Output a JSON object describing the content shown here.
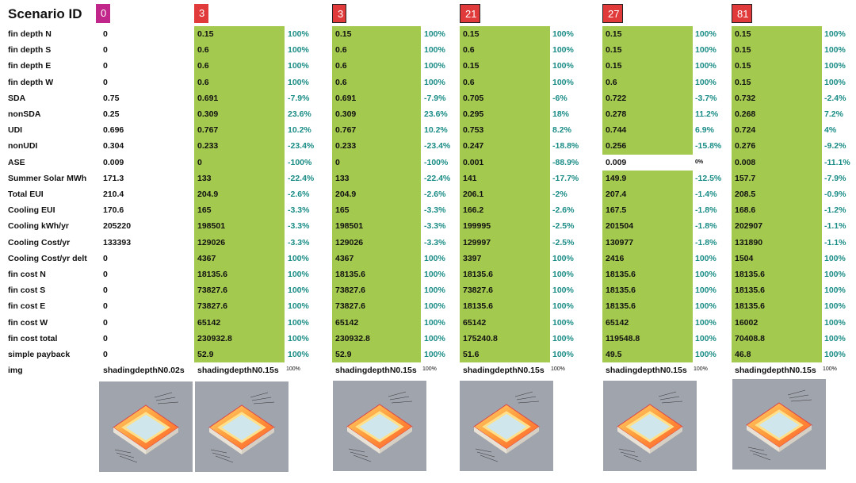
{
  "header": {
    "title": "Scenario ID"
  },
  "colors": {
    "green": "#a4c94f",
    "pct_teal": "#1a8c86",
    "badge_magenta": "#c1268a",
    "badge_red": "#e03a3a"
  },
  "row_labels": [
    "fin depth N",
    "fin depth S",
    "fin depth E",
    "fin depth W",
    "SDA",
    "nonSDA",
    "UDI",
    "nonUDI",
    "ASE",
    "Summer Solar MWh",
    "Total EUI",
    "Cooling EUI",
    "Cooling kWh/yr",
    "Cooling Cost/yr",
    "Cooling Cost/yr delt",
    "fin cost N",
    "fin cost S",
    "fin cost E",
    "fin cost W",
    "fin cost total",
    "simple payback",
    "img"
  ],
  "baseline": {
    "id": "0",
    "values": [
      "0",
      "0",
      "0",
      "0",
      "0.75",
      "0.25",
      "0.696",
      "0.304",
      "0.009",
      "171.3",
      "210.4",
      "170.6",
      "205220",
      "133393",
      "0",
      "0",
      "0",
      "0",
      "0",
      "0",
      "0",
      "shadingdepthN0.02s"
    ]
  },
  "scenarios": [
    {
      "id": "3",
      "values": [
        "0.15",
        "0.6",
        "0.6",
        "0.6",
        "0.691",
        "0.309",
        "0.767",
        "0.233",
        "0",
        "133",
        "204.9",
        "165",
        "198501",
        "129026",
        "4367",
        "18135.6",
        "73827.6",
        "73827.6",
        "65142",
        "230932.8",
        "52.9"
      ],
      "pcts": [
        "",
        "",
        "",
        "",
        "",
        "",
        "",
        "",
        "",
        "",
        "",
        "",
        "",
        "",
        "",
        "",
        "",
        "",
        "",
        "",
        ""
      ],
      "img": "shadingdepthN0.15s",
      "img_pct": "100%"
    },
    {
      "id": "3",
      "values": [
        "0.15",
        "0.6",
        "0.6",
        "0.6",
        "0.691",
        "0.309",
        "0.767",
        "0.233",
        "0",
        "133",
        "204.9",
        "165",
        "198501",
        "129026",
        "4367",
        "18135.6",
        "73827.6",
        "73827.6",
        "65142",
        "230932.8",
        "52.9"
      ],
      "pcts": [
        "100%",
        "100%",
        "100%",
        "100%",
        "-7.9%",
        "23.6%",
        "10.2%",
        "-23.4%",
        "-100%",
        "-22.4%",
        "-2.6%",
        "-3.3%",
        "-3.3%",
        "-3.3%",
        "100%",
        "100%",
        "100%",
        "100%",
        "100%",
        "100%",
        "100%"
      ],
      "img": "shadingdepthN0.15s",
      "img_pct": "100%"
    },
    {
      "id": "21",
      "values": [
        "0.15",
        "0.6",
        "0.15",
        "0.6",
        "0.705",
        "0.295",
        "0.753",
        "0.247",
        "0.001",
        "141",
        "206.1",
        "166.2",
        "199995",
        "129997",
        "3397",
        "18135.6",
        "73827.6",
        "18135.6",
        "65142",
        "175240.8",
        "51.6"
      ],
      "pcts": [
        "100%",
        "100%",
        "100%",
        "100%",
        "-6%",
        "18%",
        "8.2%",
        "-18.8%",
        "-88.9%",
        "-17.7%",
        "-2%",
        "-2.6%",
        "-2.5%",
        "-2.5%",
        "100%",
        "100%",
        "100%",
        "100%",
        "100%",
        "100%",
        "100%"
      ],
      "img": "shadingdepthN0.15s",
      "img_pct": "100%"
    },
    {
      "id": "27",
      "values": [
        "0.15",
        "0.15",
        "0.15",
        "0.6",
        "0.722",
        "0.278",
        "0.744",
        "0.256",
        "0.009",
        "149.9",
        "207.4",
        "167.5",
        "201504",
        "130977",
        "2416",
        "18135.6",
        "18135.6",
        "18135.6",
        "65142",
        "119548.8",
        "49.5"
      ],
      "pcts": [
        "100%",
        "100%",
        "100%",
        "100%",
        "-3.7%",
        "11.2%",
        "6.9%",
        "-15.8%",
        "0%",
        "-12.5%",
        "-1.4%",
        "-1.8%",
        "-1.8%",
        "-1.8%",
        "100%",
        "100%",
        "100%",
        "100%",
        "100%",
        "100%",
        "100%"
      ],
      "img": "shadingdepthN0.15s",
      "img_pct": "100%"
    },
    {
      "id": "81",
      "values": [
        "0.15",
        "0.15",
        "0.15",
        "0.15",
        "0.732",
        "0.268",
        "0.724",
        "0.276",
        "0.008",
        "157.7",
        "208.5",
        "168.6",
        "202907",
        "131890",
        "1504",
        "18135.6",
        "18135.6",
        "18135.6",
        "16002",
        "70408.8",
        "46.8"
      ],
      "pcts": [
        "100%",
        "100%",
        "100%",
        "100%",
        "-2.4%",
        "7.2%",
        "4%",
        "-9.2%",
        "-11.1%",
        "-7.9%",
        "-0.9%",
        "-1.2%",
        "-1.1%",
        "-1.1%",
        "100%",
        "100%",
        "100%",
        "100%",
        "100%",
        "100%",
        "100%"
      ],
      "img": "shadingdepthN0.15s",
      "img_pct": "100%"
    }
  ],
  "scenario0_pcts": [
    "100%",
    "100%",
    "100%",
    "100%",
    "-7.9%",
    "23.6%",
    "10.2%",
    "-23.4%",
    "-100%",
    "-22.4%",
    "-2.6%",
    "-3.3%",
    "-3.3%",
    "-3.3%",
    "100%",
    "100%",
    "100%",
    "100%",
    "100%",
    "100%",
    "100%"
  ]
}
